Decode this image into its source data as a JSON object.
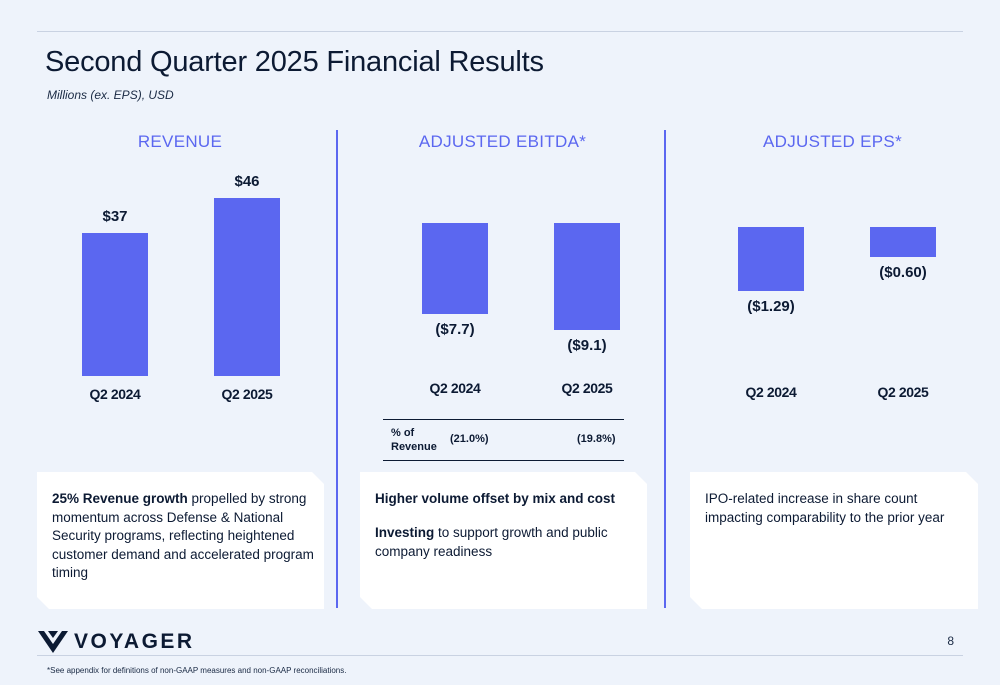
{
  "header": {
    "title": "Second Quarter 2025 Financial Results",
    "subtitle": "Millions (ex. EPS), USD"
  },
  "colors": {
    "bar": "#5b67f0",
    "text": "#0c1a33",
    "background": "#eef3fb"
  },
  "chart_data": [
    {
      "type": "bar",
      "title": "REVENUE",
      "categories": [
        "Q2 2024",
        "Q2 2025"
      ],
      "values": [
        37,
        46
      ],
      "value_labels": [
        "$37",
        "$46"
      ]
    },
    {
      "type": "bar",
      "title": "ADJUSTED EBITDA*",
      "categories": [
        "Q2 2024",
        "Q2 2025"
      ],
      "values": [
        -7.7,
        -9.1
      ],
      "value_labels": [
        "($7.7)",
        "($9.1)"
      ],
      "table": {
        "header": "% of Revenue",
        "values": [
          "(21.0%)",
          "(19.8%)"
        ]
      }
    },
    {
      "type": "bar",
      "title": "ADJUSTED EPS*",
      "categories": [
        "Q2 2024",
        "Q2 2025"
      ],
      "values": [
        -1.29,
        -0.6
      ],
      "value_labels": [
        "($1.29)",
        "($0.60)"
      ]
    }
  ],
  "cards": [
    {
      "bold": "25% Revenue growth",
      "text": " propelled by strong momentum across Defense & National Security programs, reflecting heightened customer demand and accelerated program timing"
    },
    {
      "bold1": "Higher volume offset by mix and cost",
      "bold2": "Investing",
      "text2": " to support growth and public company readiness"
    },
    {
      "text": "IPO-related increase in share count impacting comparability to the prior year"
    }
  ],
  "footer": {
    "logo_text": "VOYAGER",
    "page_number": "8",
    "footnote": "*See appendix for definitions of non-GAAP measures and non-GAAP reconciliations."
  }
}
